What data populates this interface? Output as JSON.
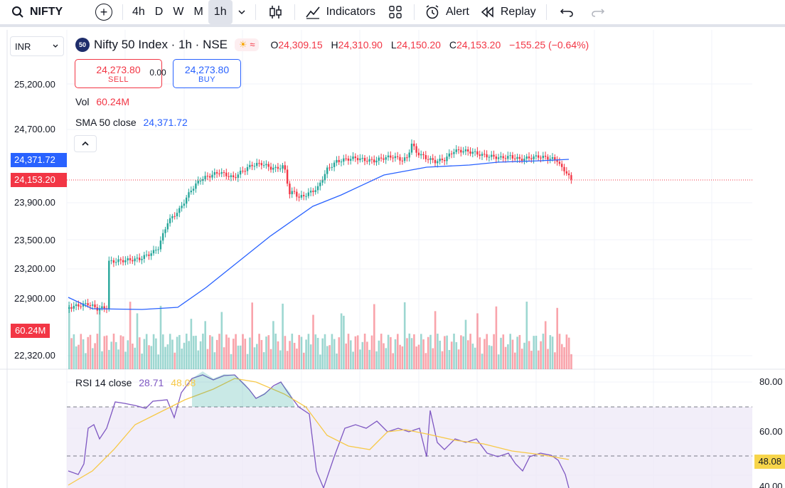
{
  "toolbar": {
    "symbol": "NIFTY",
    "timeframes": [
      "4h",
      "D",
      "W",
      "M",
      "1h"
    ],
    "active_timeframe": "1h",
    "indicators_label": "Indicators",
    "alert_label": "Alert",
    "replay_label": "Replay"
  },
  "legend": {
    "currency": "INR",
    "logo_text": "50",
    "title": "Nifty 50 Index · 1h · NSE",
    "open_label": "O",
    "open": "24,309.15",
    "high_label": "H",
    "high": "24,310.90",
    "low_label": "L",
    "low": "24,150.20",
    "close_label": "C",
    "close": "24,153.20",
    "change": "−155.25 (−0.64%)"
  },
  "trade": {
    "sell_price": "24,273.80",
    "sell_label": "SELL",
    "spread": "0.00",
    "buy_price": "24,273.80",
    "buy_label": "BUY"
  },
  "indicators": {
    "vol_label": "Vol",
    "vol_value": "60.24M",
    "sma_label": "SMA 50 close",
    "sma_value": "24,371.72",
    "rsi_label": "RSI 14 close",
    "rsi_value": "28.71",
    "rsi_ma_value": "48.08"
  },
  "price_axis": [
    "25,200.00",
    "24,700.00",
    "23,900.00",
    "23,500.00",
    "23,200.00",
    "22,900.00",
    "22,320.00"
  ],
  "rsi_axis": [
    "80.00",
    "60.00",
    "40.00"
  ],
  "tags": {
    "sma_tag": "24,371.72",
    "last_price_tag": "24,153.20",
    "volume_tag": "60.24M",
    "rsi_ma_tag": "48.08"
  },
  "colors": {
    "up": "#26a69a",
    "down": "#f23645",
    "sma": "#2962ff",
    "rsi": "#7e57c2",
    "rsi_ma": "#f7c948"
  }
}
